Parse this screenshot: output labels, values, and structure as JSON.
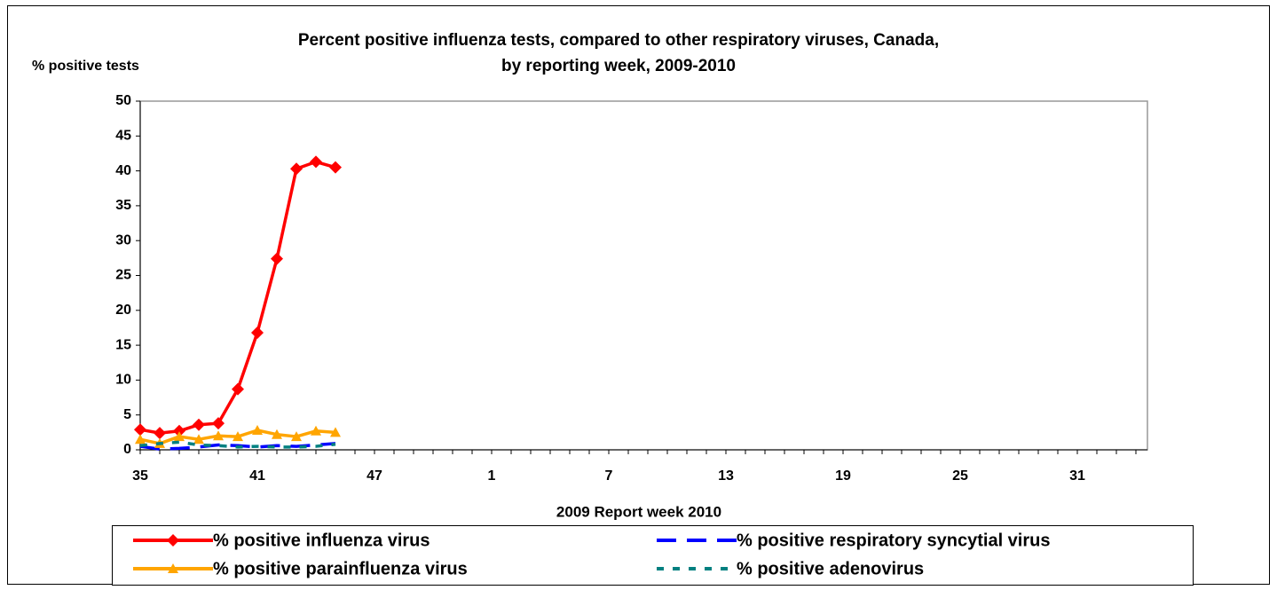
{
  "chart_data": {
    "type": "line",
    "title": [
      "Percent positive influenza tests, compared to other respiratory viruses, Canada,",
      "by reporting week, 2009-2010"
    ],
    "ylabel": "% positive tests",
    "xlabel": "2009  Report week   2010",
    "categories": [
      "35",
      null,
      null,
      null,
      null,
      null,
      "41",
      null,
      null,
      null,
      null,
      null,
      "47",
      null,
      null,
      null,
      null,
      null,
      "1",
      null,
      null,
      null,
      null,
      null,
      "7",
      null,
      null,
      null,
      null,
      null,
      "13",
      null,
      null,
      null,
      null,
      null,
      "19",
      null,
      null,
      null,
      null,
      null,
      "25",
      null,
      null,
      null,
      null,
      null,
      "31",
      null,
      null,
      null
    ],
    "ylim": [
      0,
      50
    ],
    "yticks": [
      0,
      5,
      10,
      15,
      20,
      25,
      30,
      35,
      40,
      45,
      50
    ],
    "legend": "bottom",
    "series": [
      {
        "name": "% positive influenza virus",
        "color": "#ff0000",
        "style": "solid",
        "marker": "diamond",
        "values": [
          2.9,
          2.4,
          2.7,
          3.6,
          3.8,
          8.7,
          16.8,
          27.4,
          40.3,
          41.3,
          40.5,
          null,
          null,
          null,
          null,
          null,
          null,
          null,
          null,
          null,
          null,
          null,
          null,
          null,
          null,
          null,
          null,
          null,
          null,
          null,
          null,
          null,
          null,
          null,
          null,
          null,
          null,
          null,
          null,
          null,
          null,
          null,
          null,
          null,
          null,
          null,
          null,
          null,
          null,
          null,
          null,
          null
        ]
      },
      {
        "name": "% positive respiratory syncytial virus",
        "color": "#0000ff",
        "style": "longdash",
        "marker": "none",
        "values": [
          0.5,
          0.1,
          0.2,
          0.4,
          0.7,
          0.6,
          0.4,
          0.6,
          0.5,
          0.7,
          0.9,
          null,
          null,
          null,
          null,
          null,
          null,
          null,
          null,
          null,
          null,
          null,
          null,
          null,
          null,
          null,
          null,
          null,
          null,
          null,
          null,
          null,
          null,
          null,
          null,
          null,
          null,
          null,
          null,
          null,
          null,
          null,
          null,
          null,
          null,
          null,
          null,
          null,
          null,
          null,
          null,
          null
        ]
      },
      {
        "name": "% positive parainfluenza virus",
        "color": "#ffa500",
        "style": "solid",
        "marker": "triangle",
        "values": [
          1.5,
          0.9,
          1.9,
          1.5,
          2.0,
          1.9,
          2.8,
          2.2,
          1.9,
          2.7,
          2.5,
          null,
          null,
          null,
          null,
          null,
          null,
          null,
          null,
          null,
          null,
          null,
          null,
          null,
          null,
          null,
          null,
          null,
          null,
          null,
          null,
          null,
          null,
          null,
          null,
          null,
          null,
          null,
          null,
          null,
          null,
          null,
          null,
          null,
          null,
          null,
          null,
          null,
          null,
          null,
          null,
          null
        ]
      },
      {
        "name": "% positive adenovirus",
        "color": "#008080",
        "style": "shortdash",
        "marker": "none",
        "values": [
          0.6,
          0.9,
          1.1,
          0.7,
          0.6,
          0.4,
          0.5,
          0.4,
          0.4,
          0.5,
          0.8,
          null,
          null,
          null,
          null,
          null,
          null,
          null,
          null,
          null,
          null,
          null,
          null,
          null,
          null,
          null,
          null,
          null,
          null,
          null,
          null,
          null,
          null,
          null,
          null,
          null,
          null,
          null,
          null,
          null,
          null,
          null,
          null,
          null,
          null,
          null,
          null,
          null,
          null,
          null,
          null,
          null
        ]
      }
    ]
  }
}
